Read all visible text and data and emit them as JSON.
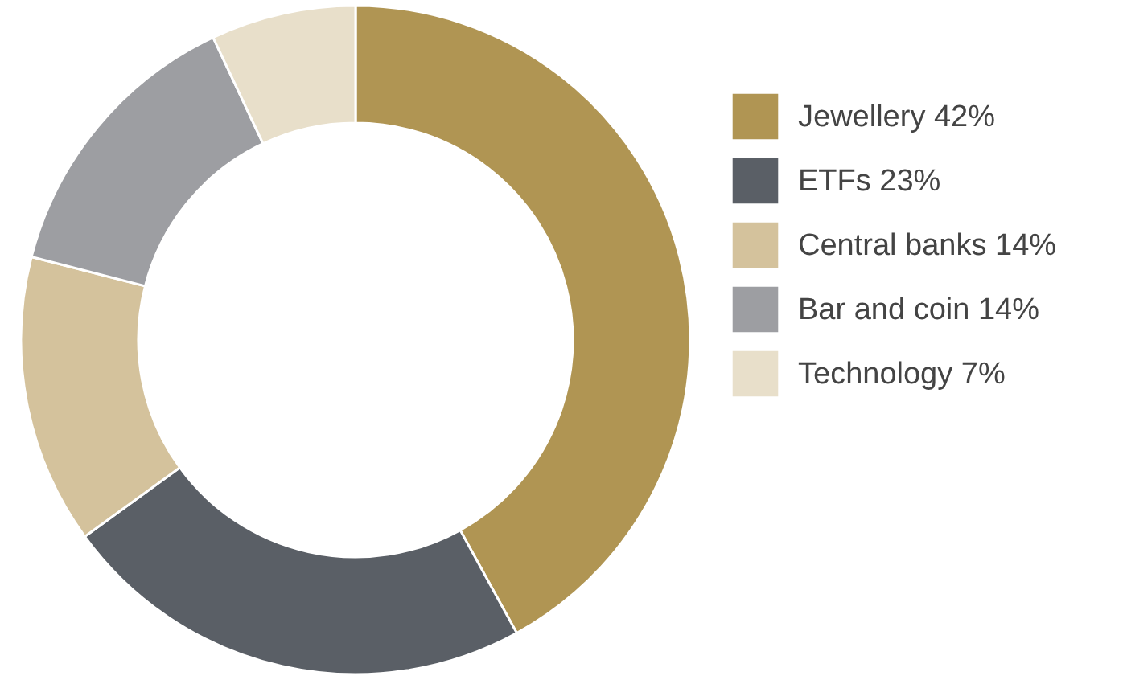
{
  "chart_data": {
    "type": "donut",
    "categories": [
      "Jewellery 42%",
      "ETFs 23%",
      "Central banks 14%",
      "Bar and coin 14%",
      "Technology 7%"
    ],
    "values": [
      42,
      23,
      14,
      14,
      7
    ],
    "colors": [
      "#b09553",
      "#5a5f66",
      "#d4c29c",
      "#9d9ea2",
      "#e8dfca"
    ],
    "legend": "right"
  }
}
